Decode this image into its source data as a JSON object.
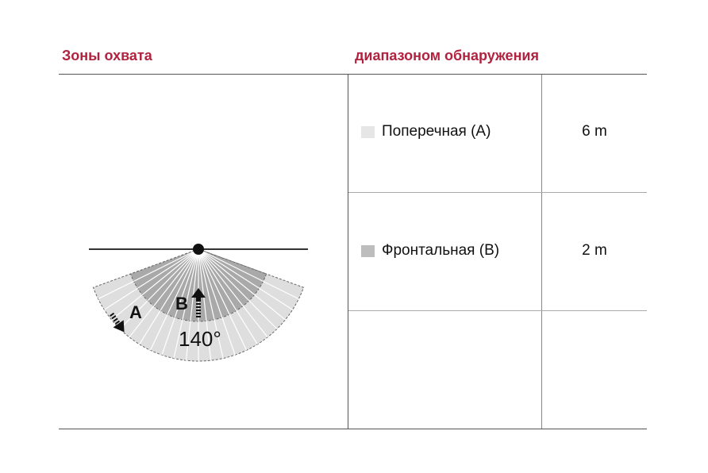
{
  "header": {
    "left": "Зоны охвата",
    "right": "диапазоном обнаружения"
  },
  "diagram": {
    "angle_label": "140°",
    "zone_a_label": "A",
    "zone_b_label": "B",
    "angle_deg": 140
  },
  "rows": [
    {
      "label": "Поперечная (A)",
      "value": "6 m",
      "swatch": "#e6e6e6"
    },
    {
      "label": "Фронтальная (B)",
      "value": "2 m",
      "swatch": "#bdbdbd"
    },
    {
      "label": "",
      "value": ""
    }
  ],
  "colors": {
    "accent": "#b1223f",
    "zone_a": "#dedede",
    "zone_b": "#a9a9a9"
  }
}
